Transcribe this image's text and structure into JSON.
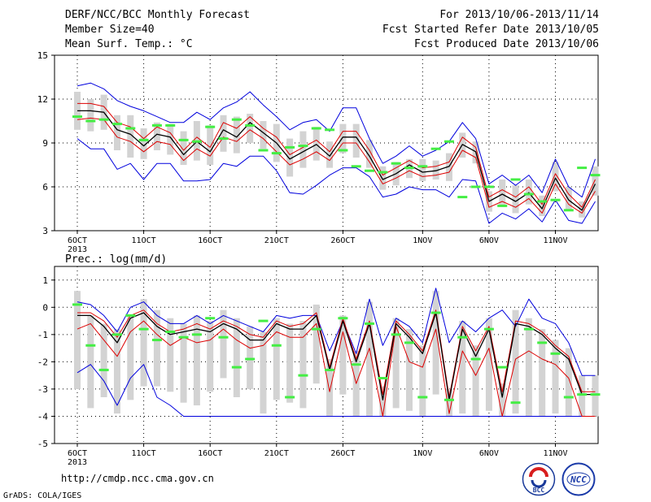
{
  "header": {
    "title": "DERF/NCC/BCC Monthly Forecast",
    "member_size": "Member Size=40",
    "top_var": "Mean Surf. Temp.: °C",
    "period": "For 2013/10/06-2013/11/14",
    "start_ref": "Fcst Started Refer Date 2013/10/05",
    "produced": "Fcst Produced Date 2013/10/06"
  },
  "footer": {
    "url": "http://cmdp.ncc.cma.gov.cn",
    "grads": "GrADS: COLA/IGES",
    "logo_bcc_label": "BCC",
    "logo_ncc_label": "NCC"
  },
  "colors": {
    "envelope": "#0000dd",
    "spread": "#dd0000",
    "mean": "#000000",
    "median": "#44ee44",
    "box": "#d3d3d3"
  },
  "chart_data": [
    {
      "id": "temperature",
      "type": "line",
      "ylabel": "Mean Surf. Temp.: °C",
      "ylim": [
        3,
        15
      ],
      "yticks": [
        3,
        6,
        9,
        12,
        15
      ],
      "grid": true,
      "xticks": [
        {
          "day": 1,
          "label": "6OCT",
          "sub": "2013"
        },
        {
          "day": 6,
          "label": "11OCT"
        },
        {
          "day": 11,
          "label": "16OCT"
        },
        {
          "day": 16,
          "label": "21OCT"
        },
        {
          "day": 21,
          "label": "26OCT"
        },
        {
          "day": 27,
          "label": "1NOV"
        },
        {
          "day": 32,
          "label": "6NOV"
        },
        {
          "day": 37,
          "label": "11NOV"
        }
      ],
      "days": [
        1,
        2,
        3,
        4,
        5,
        6,
        7,
        8,
        9,
        10,
        11,
        12,
        13,
        14,
        15,
        16,
        17,
        18,
        19,
        20,
        21,
        22,
        23,
        24,
        25,
        26,
        27,
        28,
        29,
        30,
        31,
        32,
        33,
        34,
        35,
        36,
        37,
        38,
        39,
        40
      ],
      "max": [
        12.9,
        13.1,
        12.7,
        11.9,
        11.5,
        11.2,
        10.8,
        10.4,
        10.4,
        11.1,
        10.6,
        11.4,
        11.8,
        12.5,
        11.6,
        10.8,
        9.9,
        10.4,
        10.6,
        9.8,
        11.4,
        11.4,
        9.3,
        7.6,
        8.1,
        8.8,
        8.1,
        8.5,
        9.1,
        10.4,
        9.3,
        6.2,
        6.8,
        6.1,
        6.8,
        5.6,
        7.9,
        6.0,
        5.3,
        7.9
      ],
      "upper": [
        11.7,
        11.7,
        11.5,
        10.4,
        10.1,
        9.3,
        10.1,
        9.7,
        8.5,
        9.4,
        8.7,
        10.4,
        10.0,
        10.8,
        10.0,
        9.4,
        8.2,
        8.7,
        9.2,
        8.4,
        9.8,
        9.8,
        8.5,
        6.8,
        7.3,
        7.8,
        7.3,
        7.4,
        7.7,
        9.4,
        8.7,
        5.3,
        5.8,
        5.3,
        6.0,
        4.8,
        6.9,
        5.5,
        4.6,
        6.5
      ],
      "mean": [
        11.2,
        11.2,
        11.1,
        9.9,
        9.6,
        8.8,
        9.6,
        9.4,
        8.2,
        9.1,
        8.4,
        9.9,
        9.4,
        10.4,
        9.7,
        9.0,
        7.9,
        8.4,
        8.9,
        8.1,
        9.4,
        9.4,
        8.1,
        6.5,
        6.9,
        7.5,
        7.0,
        7.1,
        7.4,
        8.9,
        8.4,
        5.0,
        5.5,
        5.0,
        5.6,
        4.5,
        6.6,
        5.1,
        4.4,
        6.2
      ],
      "lower": [
        10.6,
        10.7,
        10.6,
        9.4,
        9.1,
        8.4,
        9.1,
        8.9,
        7.8,
        8.6,
        8.1,
        9.4,
        9.1,
        9.9,
        9.3,
        8.4,
        7.5,
        7.9,
        8.4,
        7.8,
        9.0,
        9.0,
        7.7,
        6.2,
        6.6,
        7.1,
        6.7,
        6.8,
        7.0,
        8.5,
        8.0,
        4.6,
        5.0,
        4.6,
        5.2,
        4.2,
        6.2,
        4.8,
        4.2,
        5.7
      ],
      "min": [
        9.3,
        8.6,
        8.6,
        7.2,
        7.6,
        6.5,
        7.6,
        7.6,
        6.4,
        6.4,
        6.5,
        7.6,
        7.4,
        8.1,
        8.1,
        7.1,
        5.6,
        5.5,
        6.1,
        6.8,
        7.3,
        7.3,
        6.7,
        5.3,
        5.5,
        6.0,
        5.8,
        5.8,
        5.3,
        6.5,
        6.4,
        3.5,
        4.2,
        3.8,
        4.5,
        3.6,
        5.1,
        3.7,
        3.5,
        5.0
      ],
      "box_top": [
        12.5,
        12.0,
        12.3,
        10.9,
        10.9,
        10.0,
        10.4,
        10.3,
        9.8,
        10.5,
        10.2,
        10.9,
        10.8,
        11.0,
        10.5,
        10.3,
        9.3,
        9.8,
        10.1,
        9.1,
        10.3,
        10.3,
        9.2,
        7.4,
        7.7,
        7.9,
        7.9,
        7.8,
        8.3,
        9.7,
        9.1,
        5.7,
        6.5,
        6.1,
        6.5,
        5.4,
        7.7,
        6.0,
        5.0,
        7.4
      ],
      "box_bottom": [
        9.9,
        9.8,
        9.9,
        8.5,
        8.0,
        7.9,
        8.5,
        8.2,
        7.5,
        7.8,
        7.5,
        8.4,
        8.3,
        9.0,
        8.6,
        7.7,
        6.7,
        7.3,
        7.8,
        7.3,
        8.3,
        8.0,
        7.3,
        5.8,
        6.1,
        6.6,
        6.4,
        6.5,
        6.4,
        8.0,
        7.6,
        4.3,
        4.7,
        4.2,
        4.8,
        4.0,
        5.7,
        4.4,
        3.9,
        5.4
      ],
      "median": [
        10.8,
        10.5,
        10.6,
        10.3,
        10.0,
        9.2,
        10.2,
        10.2,
        9.2,
        9.1,
        10.1,
        9.3,
        10.6,
        10.2,
        8.5,
        8.3,
        8.7,
        8.8,
        10.0,
        9.9,
        8.5,
        7.4,
        7.1,
        7.0,
        7.6,
        7.3,
        7.4,
        8.6,
        9.1,
        5.3,
        6.0,
        6.0,
        4.7,
        6.5,
        5.5,
        5.0,
        5.1,
        4.4,
        7.3,
        6.8
      ]
    },
    {
      "id": "precipitation",
      "type": "line",
      "ylabel": "Prec.: log(mm/d)",
      "ylim": [
        -5,
        1.5
      ],
      "yticks": [
        -5,
        -4,
        -3,
        -2,
        -1,
        0,
        1
      ],
      "grid": true,
      "xticks": [
        {
          "day": 1,
          "label": "6OCT",
          "sub": "2013"
        },
        {
          "day": 6,
          "label": "11OCT"
        },
        {
          "day": 11,
          "label": "16OCT"
        },
        {
          "day": 16,
          "label": "21OCT"
        },
        {
          "day": 21,
          "label": "26OCT"
        },
        {
          "day": 27,
          "label": "1NOV"
        },
        {
          "day": 32,
          "label": "6NOV"
        },
        {
          "day": 37,
          "label": "11NOV"
        }
      ],
      "days": [
        1,
        2,
        3,
        4,
        5,
        6,
        7,
        8,
        9,
        10,
        11,
        12,
        13,
        14,
        15,
        16,
        17,
        18,
        19,
        20,
        21,
        22,
        23,
        24,
        25,
        26,
        27,
        28,
        29,
        30,
        31,
        32,
        33,
        34,
        35,
        36,
        37,
        38,
        39,
        40
      ],
      "max": [
        0.2,
        0.1,
        -0.3,
        -0.9,
        0.0,
        0.2,
        -0.3,
        -0.6,
        -0.6,
        -0.3,
        -0.6,
        -0.3,
        -0.5,
        -0.7,
        -0.9,
        -0.3,
        -0.4,
        -0.3,
        -0.3,
        -1.6,
        -0.5,
        -1.7,
        0.3,
        -1.4,
        -0.4,
        -0.7,
        -1.3,
        0.7,
        -1.3,
        -0.5,
        -0.9,
        -0.4,
        -0.1,
        -0.7,
        0.3,
        -0.4,
        -0.6,
        -1.3,
        -2.5,
        -2.5
      ],
      "upper": [
        -0.2,
        -0.2,
        -0.5,
        -1.1,
        -0.3,
        -0.1,
        -0.6,
        -0.9,
        -0.8,
        -0.6,
        -0.8,
        -0.5,
        -0.7,
        -1.0,
        -1.1,
        -0.5,
        -0.7,
        -0.6,
        -0.2,
        -2.2,
        -0.4,
        -1.9,
        -0.5,
        -3.2,
        -0.5,
        -1.0,
        -1.6,
        -0.1,
        -3.3,
        -0.7,
        -1.6,
        -0.7,
        -3.1,
        -0.5,
        -0.6,
        -0.9,
        -1.4,
        -1.8,
        -3.1,
        -3.1
      ],
      "mean": [
        -0.3,
        -0.3,
        -0.7,
        -1.3,
        -0.4,
        -0.2,
        -0.7,
        -1.0,
        -0.9,
        -0.8,
        -0.9,
        -0.6,
        -0.8,
        -1.2,
        -1.2,
        -0.6,
        -0.8,
        -0.8,
        -0.3,
        -2.3,
        -0.5,
        -2.0,
        -0.6,
        -3.4,
        -0.6,
        -1.1,
        -1.7,
        -0.2,
        -3.4,
        -0.8,
        -1.8,
        -0.8,
        -3.3,
        -0.6,
        -0.7,
        -1.0,
        -1.5,
        -1.9,
        -3.2,
        -3.2
      ],
      "lower": [
        -0.8,
        -0.6,
        -1.2,
        -1.8,
        -0.9,
        -0.5,
        -1.0,
        -1.4,
        -1.1,
        -1.3,
        -1.2,
        -0.8,
        -1.2,
        -1.5,
        -1.4,
        -0.9,
        -1.1,
        -1.1,
        -0.6,
        -3.1,
        -0.9,
        -2.8,
        -1.5,
        -4.0,
        -0.7,
        -2.0,
        -2.2,
        -0.8,
        -3.9,
        -1.6,
        -2.5,
        -1.5,
        -4.0,
        -1.9,
        -1.6,
        -1.9,
        -2.1,
        -2.6,
        -4.0,
        -4.0
      ],
      "min": [
        -2.4,
        -2.1,
        -2.7,
        -3.6,
        -2.6,
        -2.1,
        -3.3,
        -3.6,
        -4.0,
        -4.0,
        -4.0,
        -4.0,
        -4.0,
        -4.0,
        -4.0,
        -4.0,
        -4.0,
        -4.0,
        -4.0,
        -4.0,
        -4.0,
        -4.0,
        -4.0,
        -4.0,
        -4.0,
        -4.0,
        -4.0,
        -4.0,
        -4.0,
        -4.0,
        -4.0,
        -4.0,
        -4.0,
        -4.0,
        -4.0,
        -4.0,
        -4.0,
        -4.0,
        -4.0,
        -4.0
      ],
      "box_top": [
        0.6,
        -0.3,
        -0.6,
        -0.8,
        -0.3,
        0.3,
        -0.1,
        -0.4,
        -0.6,
        -0.3,
        -0.5,
        -0.1,
        -0.4,
        -0.7,
        -0.9,
        -0.4,
        -0.6,
        -0.5,
        0.1,
        -1.9,
        -0.3,
        -1.6,
        0.2,
        -2.9,
        -0.4,
        -0.8,
        -1.4,
        0.6,
        -3.0,
        -0.5,
        -1.4,
        -0.4,
        -2.8,
        -0.1,
        -0.4,
        -0.8,
        -1.2,
        -1.5,
        -2.5,
        -2.5
      ],
      "box_bottom": [
        -3.0,
        -3.7,
        -3.3,
        -3.9,
        -3.4,
        -2.9,
        -2.9,
        -3.1,
        -3.5,
        -3.6,
        -3.1,
        -2.6,
        -3.3,
        -3.0,
        -3.9,
        -3.4,
        -3.5,
        -3.7,
        -2.8,
        -4.0,
        -3.2,
        -4.0,
        -4.0,
        -4.0,
        -3.7,
        -3.8,
        -4.0,
        -3.2,
        -4.0,
        -3.9,
        -4.0,
        -3.8,
        -4.0,
        -3.9,
        -4.0,
        -4.0,
        -3.9,
        -4.0,
        -4.0,
        -4.0
      ],
      "median": [
        0.1,
        -1.4,
        -2.3,
        -1.0,
        -0.3,
        -0.8,
        -1.2,
        -0.9,
        -1.1,
        -1.0,
        -0.4,
        -1.1,
        -2.2,
        -1.9,
        -0.5,
        -1.4,
        -3.3,
        -2.5,
        -0.8,
        -2.3,
        -0.4,
        -2.1,
        -0.6,
        -2.6,
        -1.0,
        -1.3,
        -3.3,
        -0.2,
        -3.4,
        -1.1,
        -1.9,
        -0.8,
        -2.2,
        -3.5,
        -0.8,
        -1.3,
        -1.7,
        -3.3,
        -3.2,
        -3.2
      ]
    }
  ]
}
